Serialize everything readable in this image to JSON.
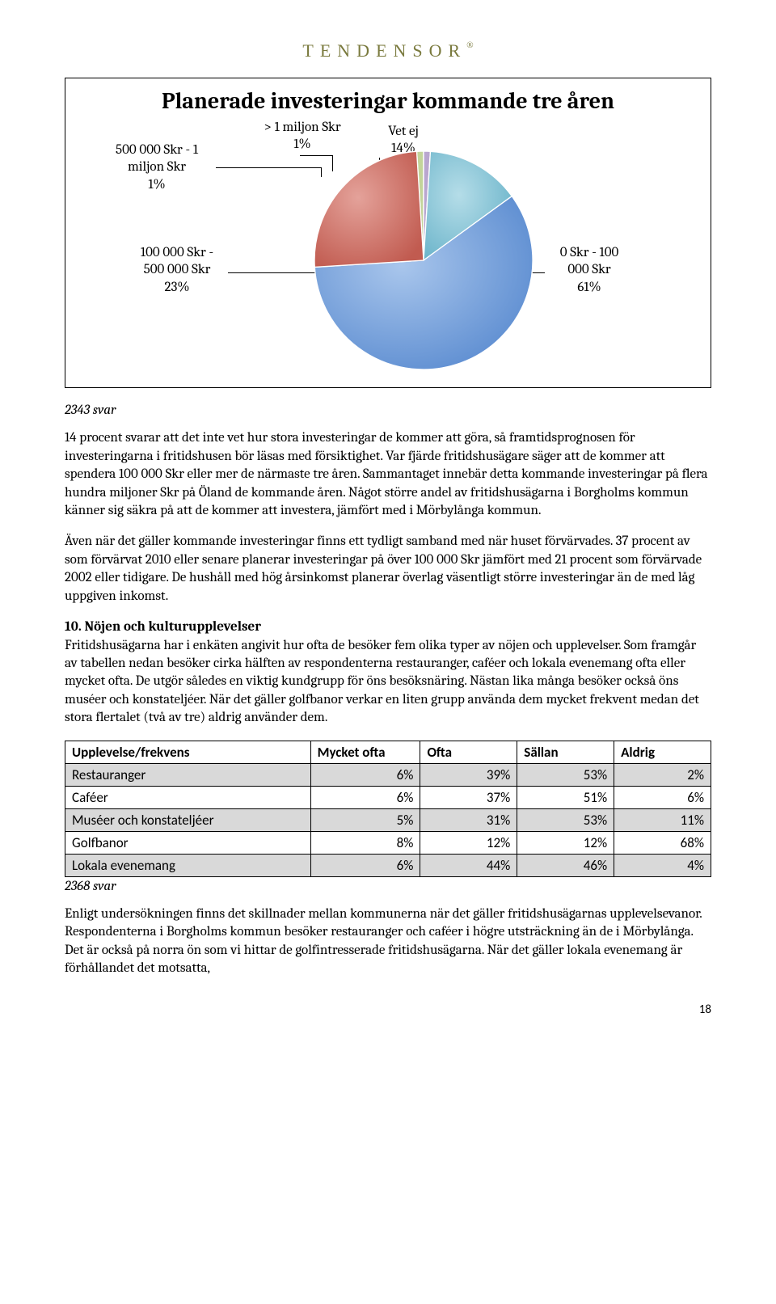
{
  "logo": "TENDENSOR",
  "chart": {
    "title": "Planerade investeringar kommande tre åren",
    "labels": {
      "halfMil": "500 000 Skr - 1 miljon Skr\n1%",
      "overMil": "> 1 miljon Skr\n1%",
      "vetEj": "Vet ej\n14%",
      "hundredK": "100 000 Skr - 500 000 Skr\n23%",
      "zero": "0 Skr - 100 000 Skr\n61%"
    },
    "style": {
      "colors": {
        "zero": "#6f9ede",
        "zeroEdge": "#3b6db5",
        "hundredK": "#d1766c",
        "hundredKEdge": "#a04038",
        "halfMil": "#c3d49a",
        "overMil": "#b9a6cf",
        "vetEj": "#8cc9db",
        "vetEjEdge": "#4a9bb3",
        "border": "#ffffff"
      },
      "slices_pct": {
        "zero": 61,
        "hundredK": 23,
        "halfMil": 1,
        "overMil": 1,
        "vetEj": 14
      }
    }
  },
  "svar_chart": "2343 svar",
  "para1": "14 procent svarar att det inte vet hur stora investeringar de kommer att göra, så framtidsprognosen för investeringarna i fritidshusen bör läsas med försiktighet. Var fjärde fritidshusägare säger att de kommer att spendera 100 000 Skr eller mer de närmaste tre åren. Sammantaget innebär detta kommande investeringar på flera hundra miljoner Skr på Öland de kommande åren. Något större andel av fritidshusägarna i Borgholms kommun känner sig säkra på att de kommer att investera, jämfört med i Mörbylånga kommun.",
  "para2": "Även när det gäller kommande investeringar finns ett tydligt samband med när huset förvärvades. 37 procent av som förvärvat 2010 eller senare planerar investeringar på över 100 000 Skr jämfört med 21 procent som förvärvade 2002 eller tidigare. De hushåll med hög årsinkomst planerar överlag väsentligt större investeringar än de med låg uppgiven inkomst.",
  "section10_head": "10. Nöjen och kulturupplevelser",
  "para3": "Fritidshusägarna har i enkäten angivit hur ofta de besöker fem olika typer av nöjen och upplevelser. Som framgår av tabellen nedan besöker cirka hälften av respondenterna restauranger, caféer och lokala evenemang ofta eller mycket ofta. De utgör således en viktig kundgrupp för öns besöksnäring. Nästan lika många besöker också öns muséer och konstateljéer. När det gäller golfbanor verkar en liten grupp använda dem mycket frekvent medan det stora flertalet (två av tre) aldrig använder dem.",
  "table": {
    "headers": [
      "Upplevelse/frekvens",
      "Mycket ofta",
      "Ofta",
      "Sällan",
      "Aldrig"
    ],
    "rows": [
      {
        "label": "Restauranger",
        "vals": [
          "6%",
          "39%",
          "53%",
          "2%"
        ],
        "shade": true
      },
      {
        "label": "Caféer",
        "vals": [
          "6%",
          "37%",
          "51%",
          "6%"
        ],
        "shade": false
      },
      {
        "label": "Muséer och konstateljéer",
        "vals": [
          "5%",
          "31%",
          "53%",
          "11%"
        ],
        "shade": true
      },
      {
        "label": "Golfbanor",
        "vals": [
          "8%",
          "12%",
          "12%",
          "68%"
        ],
        "shade": false
      },
      {
        "label": "Lokala evenemang",
        "vals": [
          "6%",
          "44%",
          "46%",
          "4%"
        ],
        "shade": true
      }
    ],
    "col_widths": [
      "38%",
      "17%",
      "15%",
      "15%",
      "15%"
    ]
  },
  "svar_table": "2368 svar",
  "para4": "Enligt undersökningen finns det skillnader mellan kommunerna när det gäller fritidshusägarnas upplevelsevanor. Respondenterna i Borgholms kommun besöker restauranger och caféer i högre utsträckning än de i Mörbylånga. Det är också på norra ön som vi hittar de golfintresserade fritidshusägarna. När det gäller lokala evenemang är förhållandet det motsatta,",
  "page_num": "18"
}
